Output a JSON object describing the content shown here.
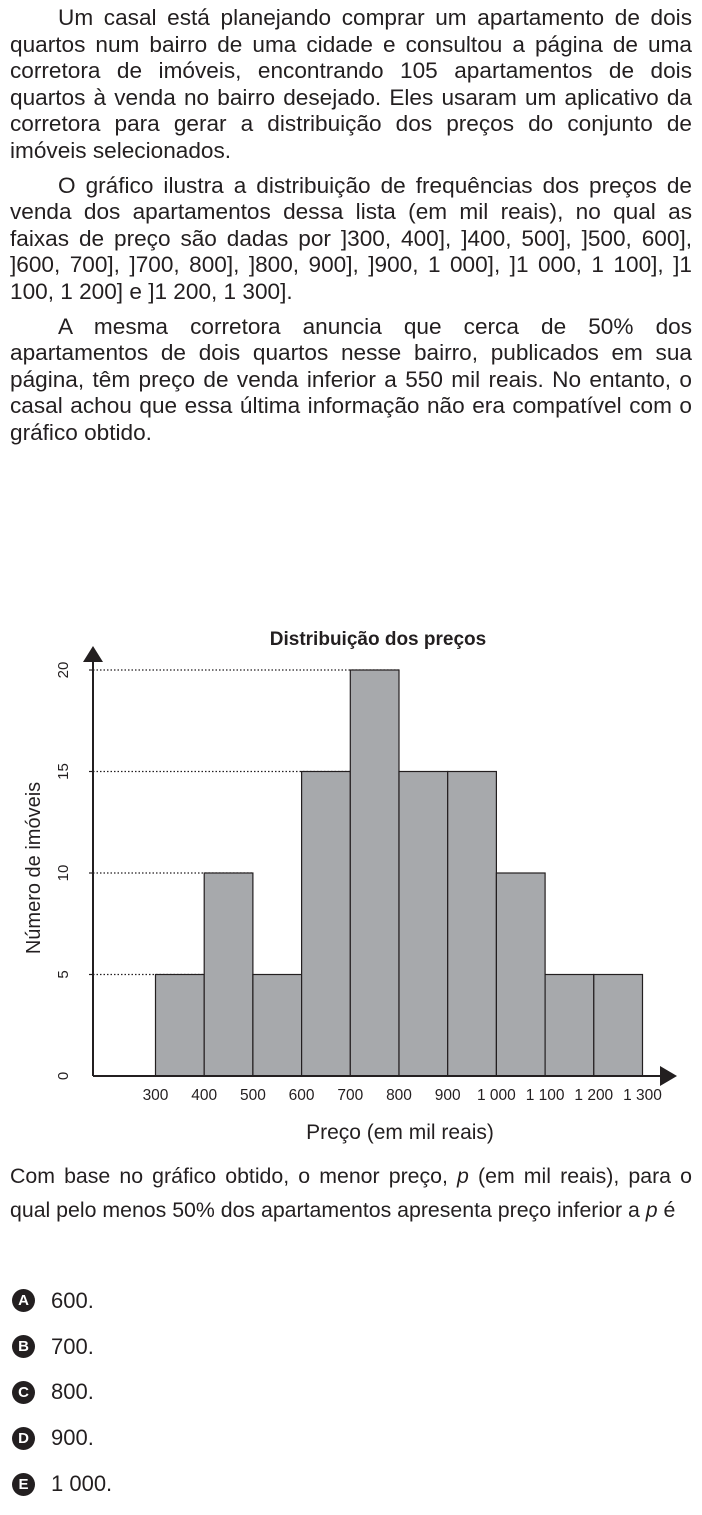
{
  "statement": {
    "paragraphs": [
      "Um casal está planejando comprar um apartamento de dois quartos num bairro de uma cidade e consultou a página de uma corretora de imóveis, encontrando 105 apartamentos de dois quartos à venda no bairro desejado. Eles usaram um aplicativo da corretora para gerar a distribuição dos preços do conjunto de imóveis selecionados.",
      "O gráfico ilustra a distribuição de frequências dos preços de venda dos apartamentos dessa lista (em mil reais), no qual as faixas de preço são dadas por ]300, 400], ]400, 500], ]500, 600], ]600, 700], ]700, 800], ]800, 900], ]900, 1 000], ]1 000, 1 100], ]1 100, 1 200] e ]1 200, 1 300].",
      "A mesma corretora anuncia que cerca de 50% dos apartamentos de dois quartos nesse bairro, publicados em sua página, têm preço de venda inferior a 550 mil reais. No entanto, o casal achou que essa última informação não era compatível com o gráfico obtido."
    ]
  },
  "chart_data": {
    "type": "bar",
    "title": "Distribuição dos preços",
    "xlabel": "Preço (em mil reais)",
    "ylabel": "Número de imóveis",
    "bin_edges": [
      300,
      400,
      500,
      600,
      700,
      800,
      900,
      1000,
      1100,
      1200,
      1300
    ],
    "x_tick_labels": [
      "300",
      "400",
      "500",
      "600",
      "700",
      "800",
      "900",
      "1 000",
      "1 100",
      "1 200",
      "1 300"
    ],
    "values": [
      5,
      10,
      5,
      15,
      20,
      15,
      15,
      10,
      5,
      5
    ],
    "y_ticks": [
      0,
      5,
      10,
      15,
      20
    ],
    "y_tick_labels": [
      "0",
      "5",
      "10",
      "15",
      "20"
    ],
    "xlim": [
      170,
      1300
    ],
    "ylim": [
      0,
      20
    ],
    "grid": "dotted horizontal reference lines at 5, 10, 15 and 20",
    "bar_color": "#a7a9ac",
    "edge_color": "#231f20"
  },
  "question": {
    "before_p1": "Com base no gráfico obtido, o menor preço, ",
    "var1": "p",
    "middle": " (em mil reais), para o qual pelo menos 50% dos apartamentos apresenta preço inferior a ",
    "var2": "p",
    "after": " é"
  },
  "options": [
    {
      "letter": "A",
      "text": "600."
    },
    {
      "letter": "B",
      "text": "700."
    },
    {
      "letter": "C",
      "text": "800."
    },
    {
      "letter": "D",
      "text": "900."
    },
    {
      "letter": "E",
      "text": "1 000."
    }
  ]
}
